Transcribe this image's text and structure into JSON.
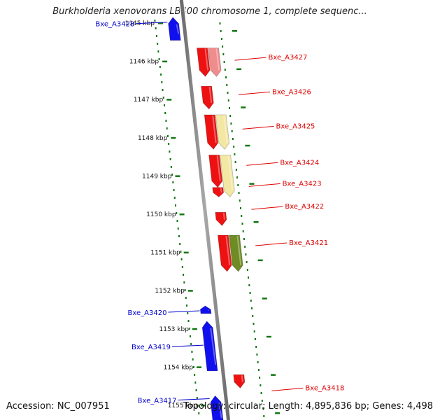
{
  "title": "Burkholderia xenovorans LB400 chromosome 1, complete sequenc...",
  "footer": {
    "accession": "Accession: NC_007951",
    "topology": "Topology: circular; Length: 4,895,836 bp; Genes: 4,498"
  },
  "colors": {
    "forward_label": "#0000cc",
    "reverse_label": "#dd0000",
    "tick": "#117711",
    "backbone": "#8a8a8a"
  },
  "ticks": [
    "1145 kbp",
    "1146 kbp",
    "1147 kbp",
    "1148 kbp",
    "1149 kbp",
    "1150 kbp",
    "1151 kbp",
    "1152 kbp",
    "1153 kbp",
    "1154 kbp",
    "1155 kbp"
  ],
  "genes": [
    {
      "label": "Bxe_A3428",
      "strand": "forward",
      "start_kbp": 1144.85,
      "end_kbp": 1145.45,
      "color": "#1010ee"
    },
    {
      "label": "Bxe_A3427",
      "strand": "reverse",
      "start_kbp": 1145.65,
      "end_kbp": 1146.4,
      "color": "#ee1111"
    },
    {
      "label": "Bxe_A3427",
      "strand": "reverse",
      "start_kbp": 1145.65,
      "end_kbp": 1146.4,
      "color": "#f08c8c",
      "track": "feature"
    },
    {
      "label": "Bxe_A3426",
      "strand": "reverse",
      "start_kbp": 1146.65,
      "end_kbp": 1147.25,
      "color": "#ee1111"
    },
    {
      "label": "Bxe_A3425",
      "strand": "reverse",
      "start_kbp": 1147.4,
      "end_kbp": 1148.3,
      "color": "#ee1111"
    },
    {
      "label": "Bxe_A3425",
      "strand": "reverse",
      "start_kbp": 1147.4,
      "end_kbp": 1148.3,
      "color": "#f3e7a4",
      "track": "feature"
    },
    {
      "label": "Bxe_A3424",
      "strand": "reverse",
      "start_kbp": 1148.45,
      "end_kbp": 1149.3,
      "color": "#ee1111"
    },
    {
      "label": "Bxe_A3424",
      "strand": "reverse",
      "start_kbp": 1148.45,
      "end_kbp": 1149.55,
      "color": "#f3e7a4",
      "track": "feature"
    },
    {
      "label": "Bxe_A3423",
      "strand": "reverse",
      "start_kbp": 1149.3,
      "end_kbp": 1149.55,
      "color": "#ee1111"
    },
    {
      "label": "Bxe_A3422",
      "strand": "reverse",
      "start_kbp": 1149.95,
      "end_kbp": 1150.3,
      "color": "#ee1111"
    },
    {
      "label": "Bxe_A3421",
      "strand": "reverse",
      "start_kbp": 1150.55,
      "end_kbp": 1151.5,
      "color": "#ee1111"
    },
    {
      "label": "Bxe_A3421",
      "strand": "reverse",
      "start_kbp": 1150.55,
      "end_kbp": 1151.5,
      "color": "#6e8b24",
      "track": "feature"
    },
    {
      "label": "Bxe_A3420",
      "strand": "forward",
      "start_kbp": 1152.4,
      "end_kbp": 1152.6,
      "color": "#1010ee"
    },
    {
      "label": "Bxe_A3419",
      "strand": "forward",
      "start_kbp": 1152.8,
      "end_kbp": 1154.1,
      "color": "#1010ee"
    },
    {
      "label": "Bxe_A3418",
      "strand": "reverse",
      "start_kbp": 1154.2,
      "end_kbp": 1154.55,
      "color": "#ee1111"
    },
    {
      "label": "Bxe_A3417",
      "strand": "forward",
      "start_kbp": 1154.75,
      "end_kbp": 1155.5,
      "color": "#1010ee"
    }
  ],
  "gene_labels": [
    {
      "text": "Bxe_A3428",
      "strand": "forward",
      "at_kbp": 1145.05
    },
    {
      "text": "Bxe_A3427",
      "strand": "reverse",
      "at_kbp": 1145.9
    },
    {
      "text": "Bxe_A3426",
      "strand": "reverse",
      "at_kbp": 1146.8
    },
    {
      "text": "Bxe_A3425",
      "strand": "reverse",
      "at_kbp": 1147.7
    },
    {
      "text": "Bxe_A3424",
      "strand": "reverse",
      "at_kbp": 1148.65
    },
    {
      "text": "Bxe_A3423",
      "strand": "reverse",
      "at_kbp": 1149.2
    },
    {
      "text": "Bxe_A3422",
      "strand": "reverse",
      "at_kbp": 1149.8
    },
    {
      "text": "Bxe_A3421",
      "strand": "reverse",
      "at_kbp": 1150.75
    },
    {
      "text": "Bxe_A3420",
      "strand": "forward",
      "at_kbp": 1152.6
    },
    {
      "text": "Bxe_A3419",
      "strand": "forward",
      "at_kbp": 1153.5
    },
    {
      "text": "Bxe_A3418",
      "strand": "reverse",
      "at_kbp": 1154.55
    },
    {
      "text": "Bxe_A3417",
      "strand": "forward",
      "at_kbp": 1154.9
    }
  ]
}
